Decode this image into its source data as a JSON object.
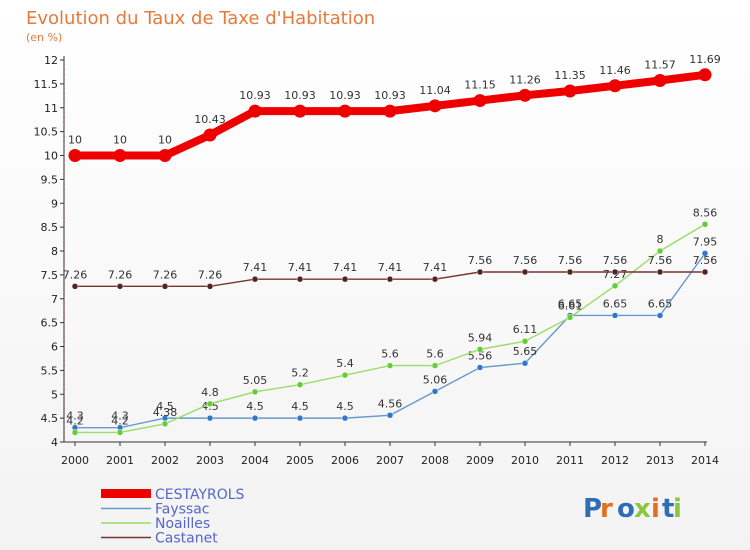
{
  "chart_data": {
    "type": "line",
    "title": "Evolution du Taux de Taxe d'Habitation",
    "subtitle": "(en %)",
    "xlabel": "",
    "ylabel": "",
    "ylim": [
      4,
      12
    ],
    "yticks": [
      "4",
      "4.5",
      "5",
      "5.5",
      "6",
      "6.5",
      "7",
      "7.5",
      "8",
      "8.5",
      "9",
      "9.5",
      "10",
      "10.5",
      "11",
      "11.5",
      "12"
    ],
    "categories": [
      "2000",
      "2001",
      "2002",
      "2003",
      "2004",
      "2005",
      "2006",
      "2007",
      "2008",
      "2009",
      "2010",
      "2011",
      "2012",
      "2013",
      "2014"
    ],
    "grid": false,
    "legend_position": "bottom-left",
    "series": [
      {
        "name": "CESTAYROLS",
        "color": "#ee0000",
        "thick": true,
        "values": [
          10,
          10,
          10,
          10.43,
          10.93,
          10.93,
          10.93,
          10.93,
          11.04,
          11.15,
          11.26,
          11.35,
          11.46,
          11.57,
          11.69
        ],
        "labels": [
          "10",
          "10",
          "10",
          "10.43",
          "10.93",
          "10.93",
          "10.93",
          "10.93",
          "11.04",
          "11.15",
          "11.26",
          "11.35",
          "11.46",
          "11.57",
          "11.69"
        ]
      },
      {
        "name": "Fayssac",
        "color": "#6699cc",
        "marker": "#3377cc",
        "values": [
          4.3,
          4.3,
          4.5,
          4.5,
          4.5,
          4.5,
          4.5,
          4.56,
          5.06,
          5.56,
          5.65,
          6.65,
          6.65,
          6.65,
          7.95
        ],
        "labels": [
          "4.3",
          "4.3",
          "4.5",
          "4.5",
          "4.5",
          "4.5",
          "4.5",
          "4.56",
          "5.06",
          "5.56",
          "5.65",
          "6.65",
          "6.65",
          "6.65",
          "7.95"
        ]
      },
      {
        "name": "Noailles",
        "color": "#99dd66",
        "marker": "#66cc33",
        "values": [
          4.2,
          4.2,
          4.38,
          4.8,
          5.05,
          5.2,
          5.4,
          5.6,
          5.6,
          5.94,
          6.11,
          6.61,
          7.27,
          8,
          8.56
        ],
        "labels": [
          "4.2",
          "4.2",
          "4.38",
          "4.8",
          "5.05",
          "5.2",
          "5.4",
          "5.6",
          "5.6",
          "5.94",
          "6.11",
          "6.61",
          "7.27",
          "8",
          "8.56"
        ]
      },
      {
        "name": "Castanet",
        "color": "#773333",
        "marker": "#552222",
        "values": [
          7.26,
          7.26,
          7.26,
          7.26,
          7.41,
          7.41,
          7.41,
          7.41,
          7.41,
          7.56,
          7.56,
          7.56,
          7.56,
          7.56,
          7.56
        ],
        "labels": [
          "7.26",
          "7.26",
          "7.26",
          "7.26",
          "7.41",
          "7.41",
          "7.41",
          "7.41",
          "7.41",
          "7.56",
          "7.56",
          "7.56",
          "7.56",
          "7.56",
          "7.56"
        ]
      }
    ]
  },
  "logo": {
    "text": "Proxiti",
    "colors": [
      "#2f6db5",
      "#e36f1e",
      "#2f6db5",
      "#8cc63f",
      "#e36f1e",
      "#2f6db5",
      "#8cc63f"
    ]
  }
}
